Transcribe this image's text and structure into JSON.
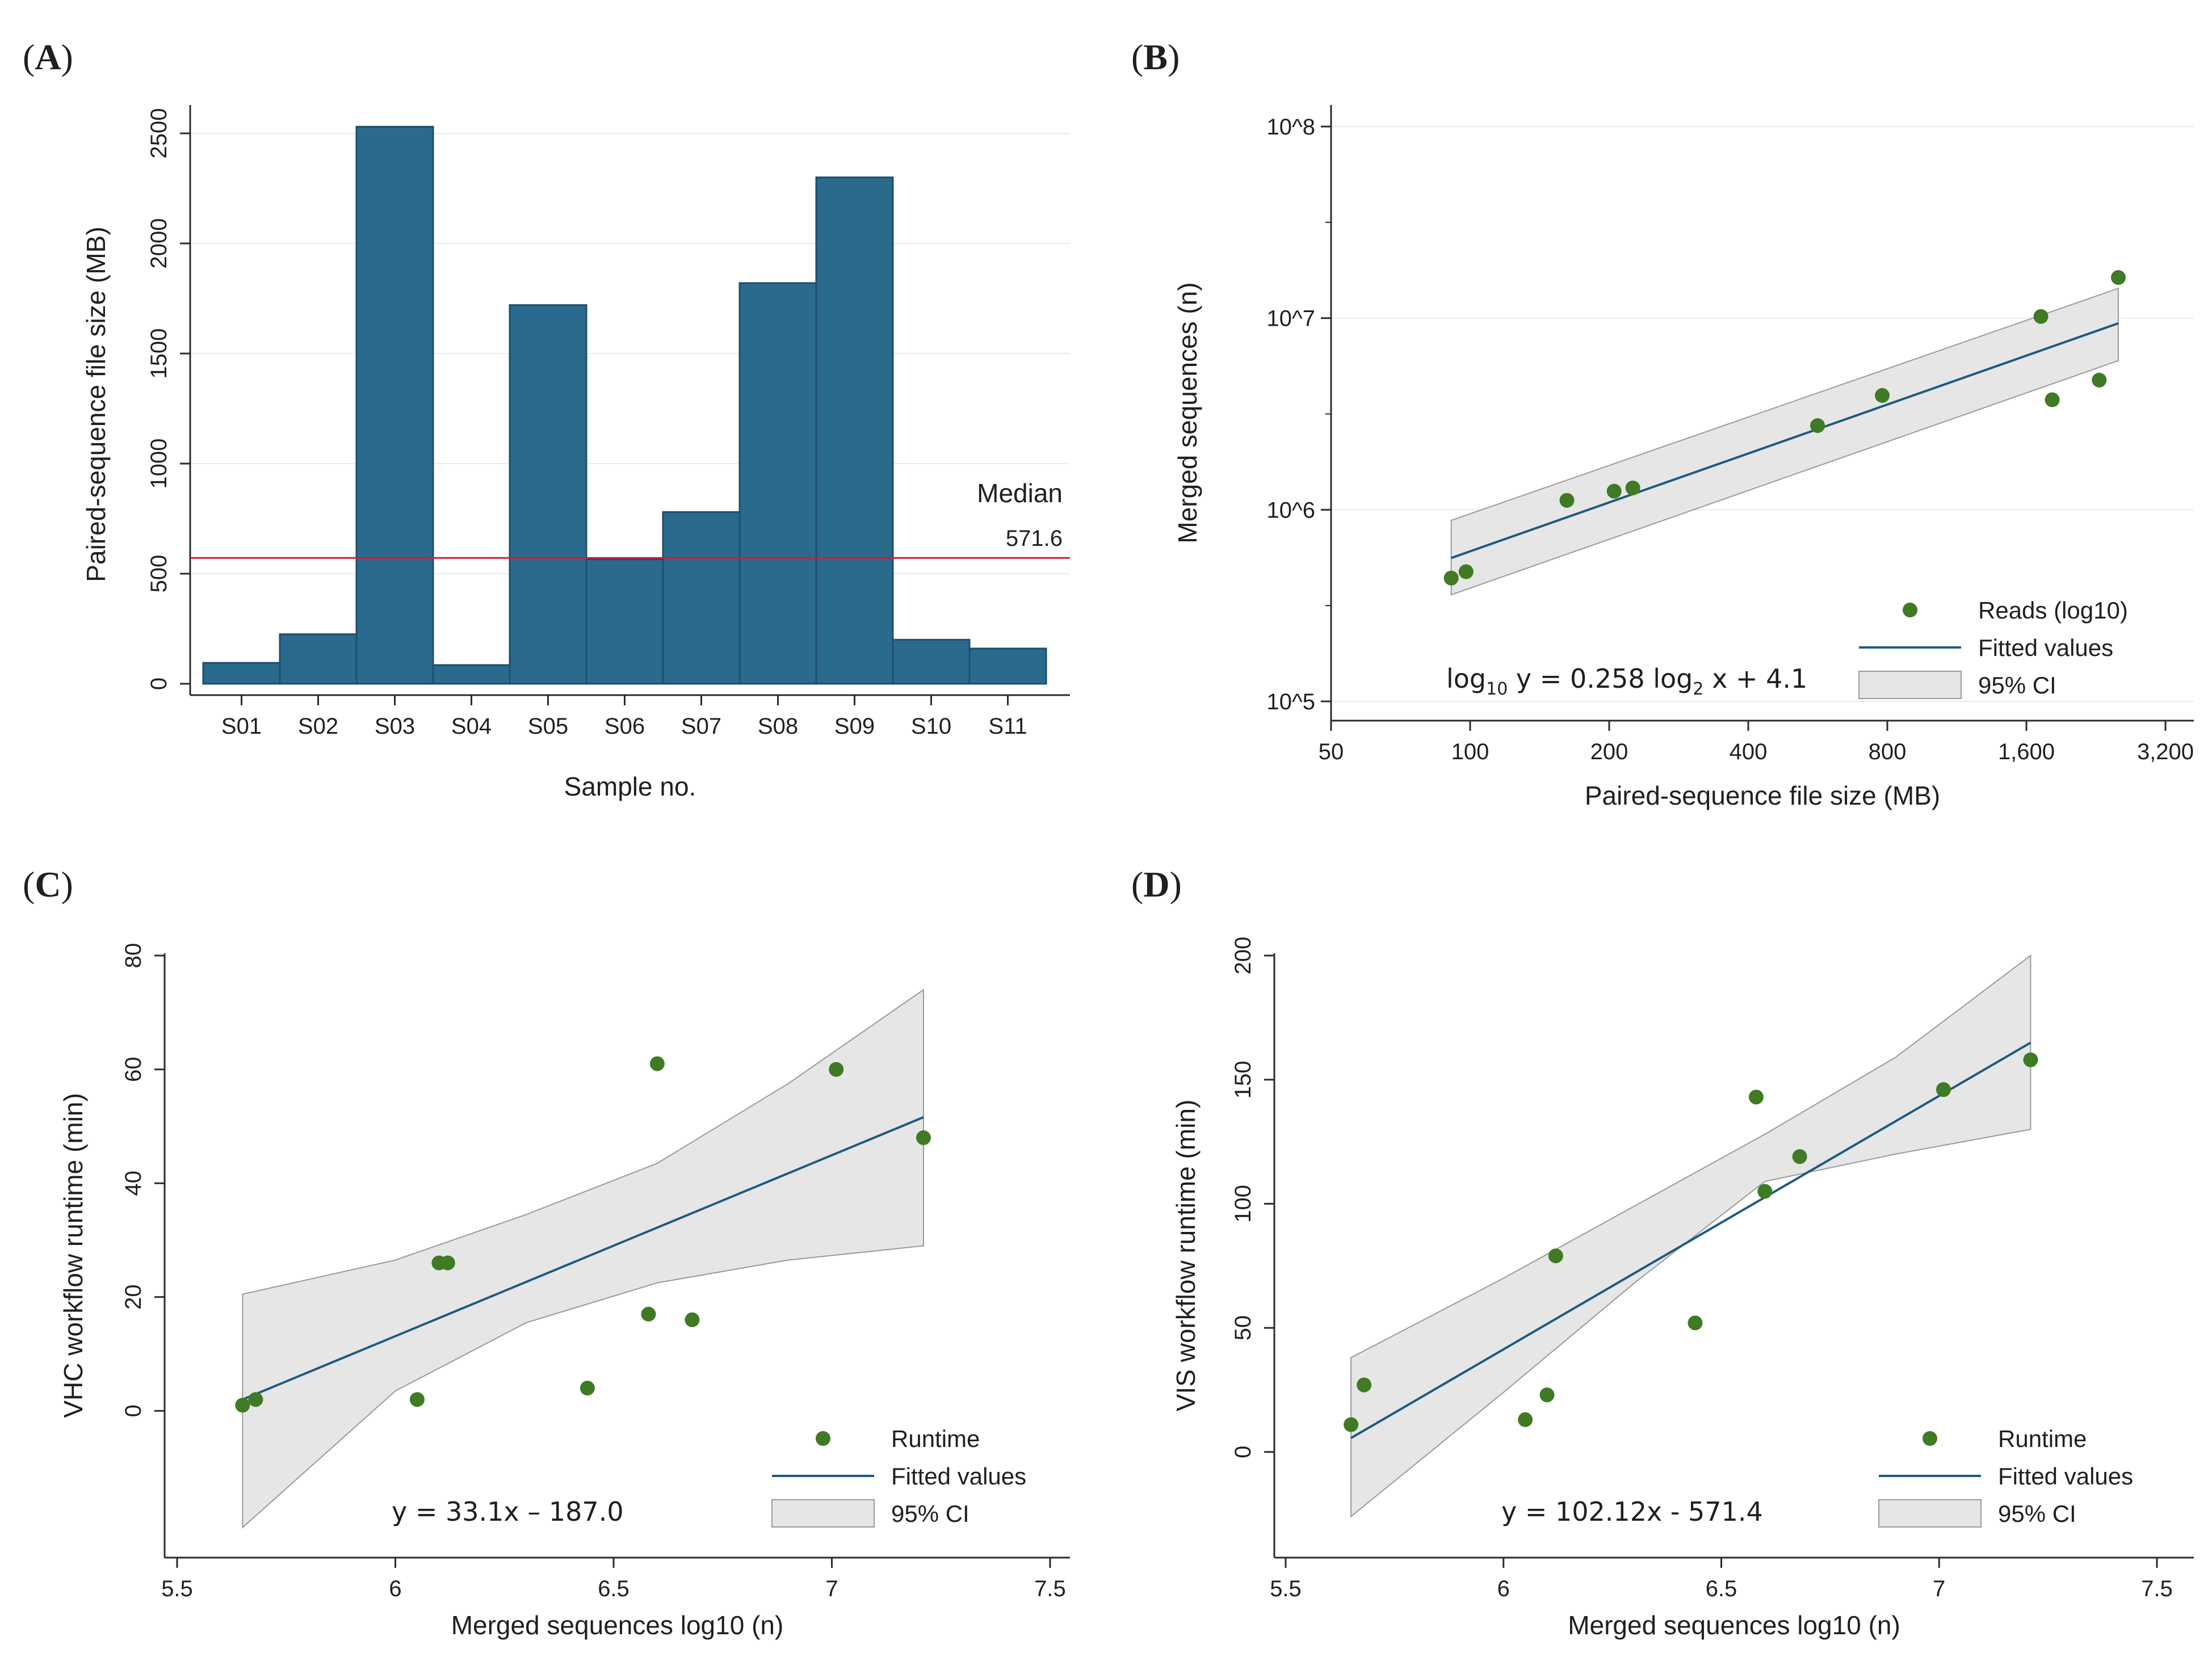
{
  "colors": {
    "bar_fill": "#2a6a8c",
    "bar_edge": "#1d4f6b",
    "point": "#3f7a25",
    "fit_line": "#1e5a80",
    "ci_band": "#e6e6e6",
    "ci_edge": "#9a9a9a",
    "median_line": "#d11a3d",
    "grid": "#e3eef0",
    "axis": "#2b2b2b"
  },
  "chart_data": [
    {
      "panel": "A",
      "type": "bar",
      "title": "",
      "xlabel": "Sample no.",
      "ylabel": "Paired-sequence file size (MB)",
      "categories": [
        "S01",
        "S02",
        "S03",
        "S04",
        "S05",
        "S06",
        "S07",
        "S08",
        "S09",
        "S10",
        "S11"
      ],
      "values": [
        95,
        225,
        2530,
        85,
        1720,
        565,
        780,
        1820,
        2300,
        200,
        160
      ],
      "ylim": [
        0,
        2500
      ],
      "yticks": [
        0,
        500,
        1000,
        1500,
        2000,
        2500
      ],
      "grid": true,
      "reference_line": {
        "label": "Median",
        "value": 571.6,
        "value_label": "571.6"
      }
    },
    {
      "panel": "B",
      "type": "scatter",
      "title": "",
      "xlabel": "Paired-sequence file size (MB)",
      "ylabel": "Merged sequences (n)",
      "x_scale": "log2",
      "y_scale": "log10",
      "xlim": [
        50,
        3200
      ],
      "ylim": [
        100000,
        100000000
      ],
      "xticks": [
        50,
        100,
        200,
        400,
        800,
        1600,
        3200
      ],
      "xtick_labels": [
        "50",
        "100",
        "200",
        "400",
        "800",
        "1,600",
        "3,200"
      ],
      "yticks": [
        100000,
        1000000,
        10000000,
        100000000
      ],
      "ytick_labels": [
        "10^5",
        "10^6",
        "10^7",
        "10^8"
      ],
      "grid": true,
      "series": [
        {
          "name": "Reads (log10)",
          "kind": "points",
          "x": [
            91,
            98,
            162,
            205,
            225,
            565,
            780,
            1720,
            2300,
            1820,
            2530
          ],
          "y": [
            440000,
            475000,
            1120000,
            1250000,
            1300000,
            2750000,
            3950000,
            10200000,
            4750000,
            3750000,
            16300000
          ]
        },
        {
          "name": "Fitted values",
          "kind": "line",
          "x": [
            91,
            2530
          ],
          "y": [
            560000,
            9400000
          ]
        },
        {
          "name": "95% CI",
          "kind": "band",
          "x": [
            91,
            2530
          ],
          "lower": [
            360000,
            6000000
          ],
          "upper": [
            880000,
            14300000
          ]
        }
      ],
      "legend_position": "bottom-right",
      "equation": {
        "pre": "log",
        "sub1": "10",
        "mid": " y = 0.258 log",
        "sub2": "2",
        "post": " x + 4.1"
      }
    },
    {
      "panel": "C",
      "type": "scatter",
      "title": "",
      "xlabel": "Merged sequences log10 (n)",
      "ylabel": "VHC workflow runtime (min)",
      "xlim": [
        5.5,
        7.5
      ],
      "ylim": [
        -20,
        80
      ],
      "xticks": [
        5.5,
        6,
        6.5,
        7,
        7.5
      ],
      "xtick_labels": [
        "5.5",
        "6",
        "6.5",
        "7",
        "7.5"
      ],
      "yticks": [
        0,
        20,
        40,
        60,
        80
      ],
      "ytick_labels": [
        "0",
        "20",
        "40",
        "60",
        "80"
      ],
      "grid": false,
      "series": [
        {
          "name": "Runtime",
          "kind": "points",
          "x": [
            5.65,
            5.68,
            6.05,
            6.1,
            6.12,
            6.44,
            6.58,
            6.6,
            6.68,
            7.01,
            7.21
          ],
          "y": [
            1,
            2,
            2,
            26,
            26,
            4,
            17,
            61,
            16,
            60,
            48
          ]
        },
        {
          "name": "Fitted values",
          "kind": "line",
          "x": [
            5.65,
            7.21
          ],
          "y": [
            2.0,
            51.6
          ]
        },
        {
          "name": "95% CI",
          "kind": "band",
          "x": [
            5.65,
            6.0,
            6.3,
            6.6,
            6.9,
            7.21
          ],
          "lower": [
            -20.5,
            3.5,
            15.5,
            22.5,
            26.5,
            29.0
          ],
          "upper": [
            20.5,
            26.5,
            34.5,
            43.5,
            57.5,
            74.0
          ]
        }
      ],
      "legend_position": "bottom-right",
      "equation": "y = 33.1x – 187.0"
    },
    {
      "panel": "D",
      "type": "scatter",
      "title": "",
      "xlabel": "Merged sequences log10 (n)",
      "ylabel": "VIS workflow runtime (min)",
      "xlim": [
        5.5,
        7.5
      ],
      "ylim": [
        -30,
        200
      ],
      "xticks": [
        5.5,
        6,
        6.5,
        7,
        7.5
      ],
      "xtick_labels": [
        "5.5",
        "6",
        "6.5",
        "7",
        "7.5"
      ],
      "yticks": [
        0,
        50,
        100,
        150,
        200
      ],
      "ytick_labels": [
        "0",
        "50",
        "100",
        "150",
        "200"
      ],
      "grid": false,
      "series": [
        {
          "name": "Runtime",
          "kind": "points",
          "x": [
            5.65,
            5.68,
            6.05,
            6.1,
            6.12,
            6.44,
            6.58,
            6.6,
            6.68,
            7.01,
            7.21
          ],
          "y": [
            11,
            27,
            13,
            23,
            79,
            52,
            143,
            105,
            119,
            146,
            158
          ]
        },
        {
          "name": "Fitted values",
          "kind": "line",
          "x": [
            5.65,
            7.21
          ],
          "y": [
            5.6,
            164.9
          ]
        },
        {
          "name": "95% CI",
          "kind": "band",
          "x": [
            5.65,
            6.0,
            6.3,
            6.6,
            6.9,
            7.21
          ],
          "lower": [
            -26,
            24,
            68,
            109,
            120,
            130
          ],
          "upper": [
            38,
            70,
            99,
            128,
            159,
            200
          ]
        }
      ],
      "legend_position": "bottom-right",
      "equation": "y = 102.12x - 571.4"
    }
  ]
}
